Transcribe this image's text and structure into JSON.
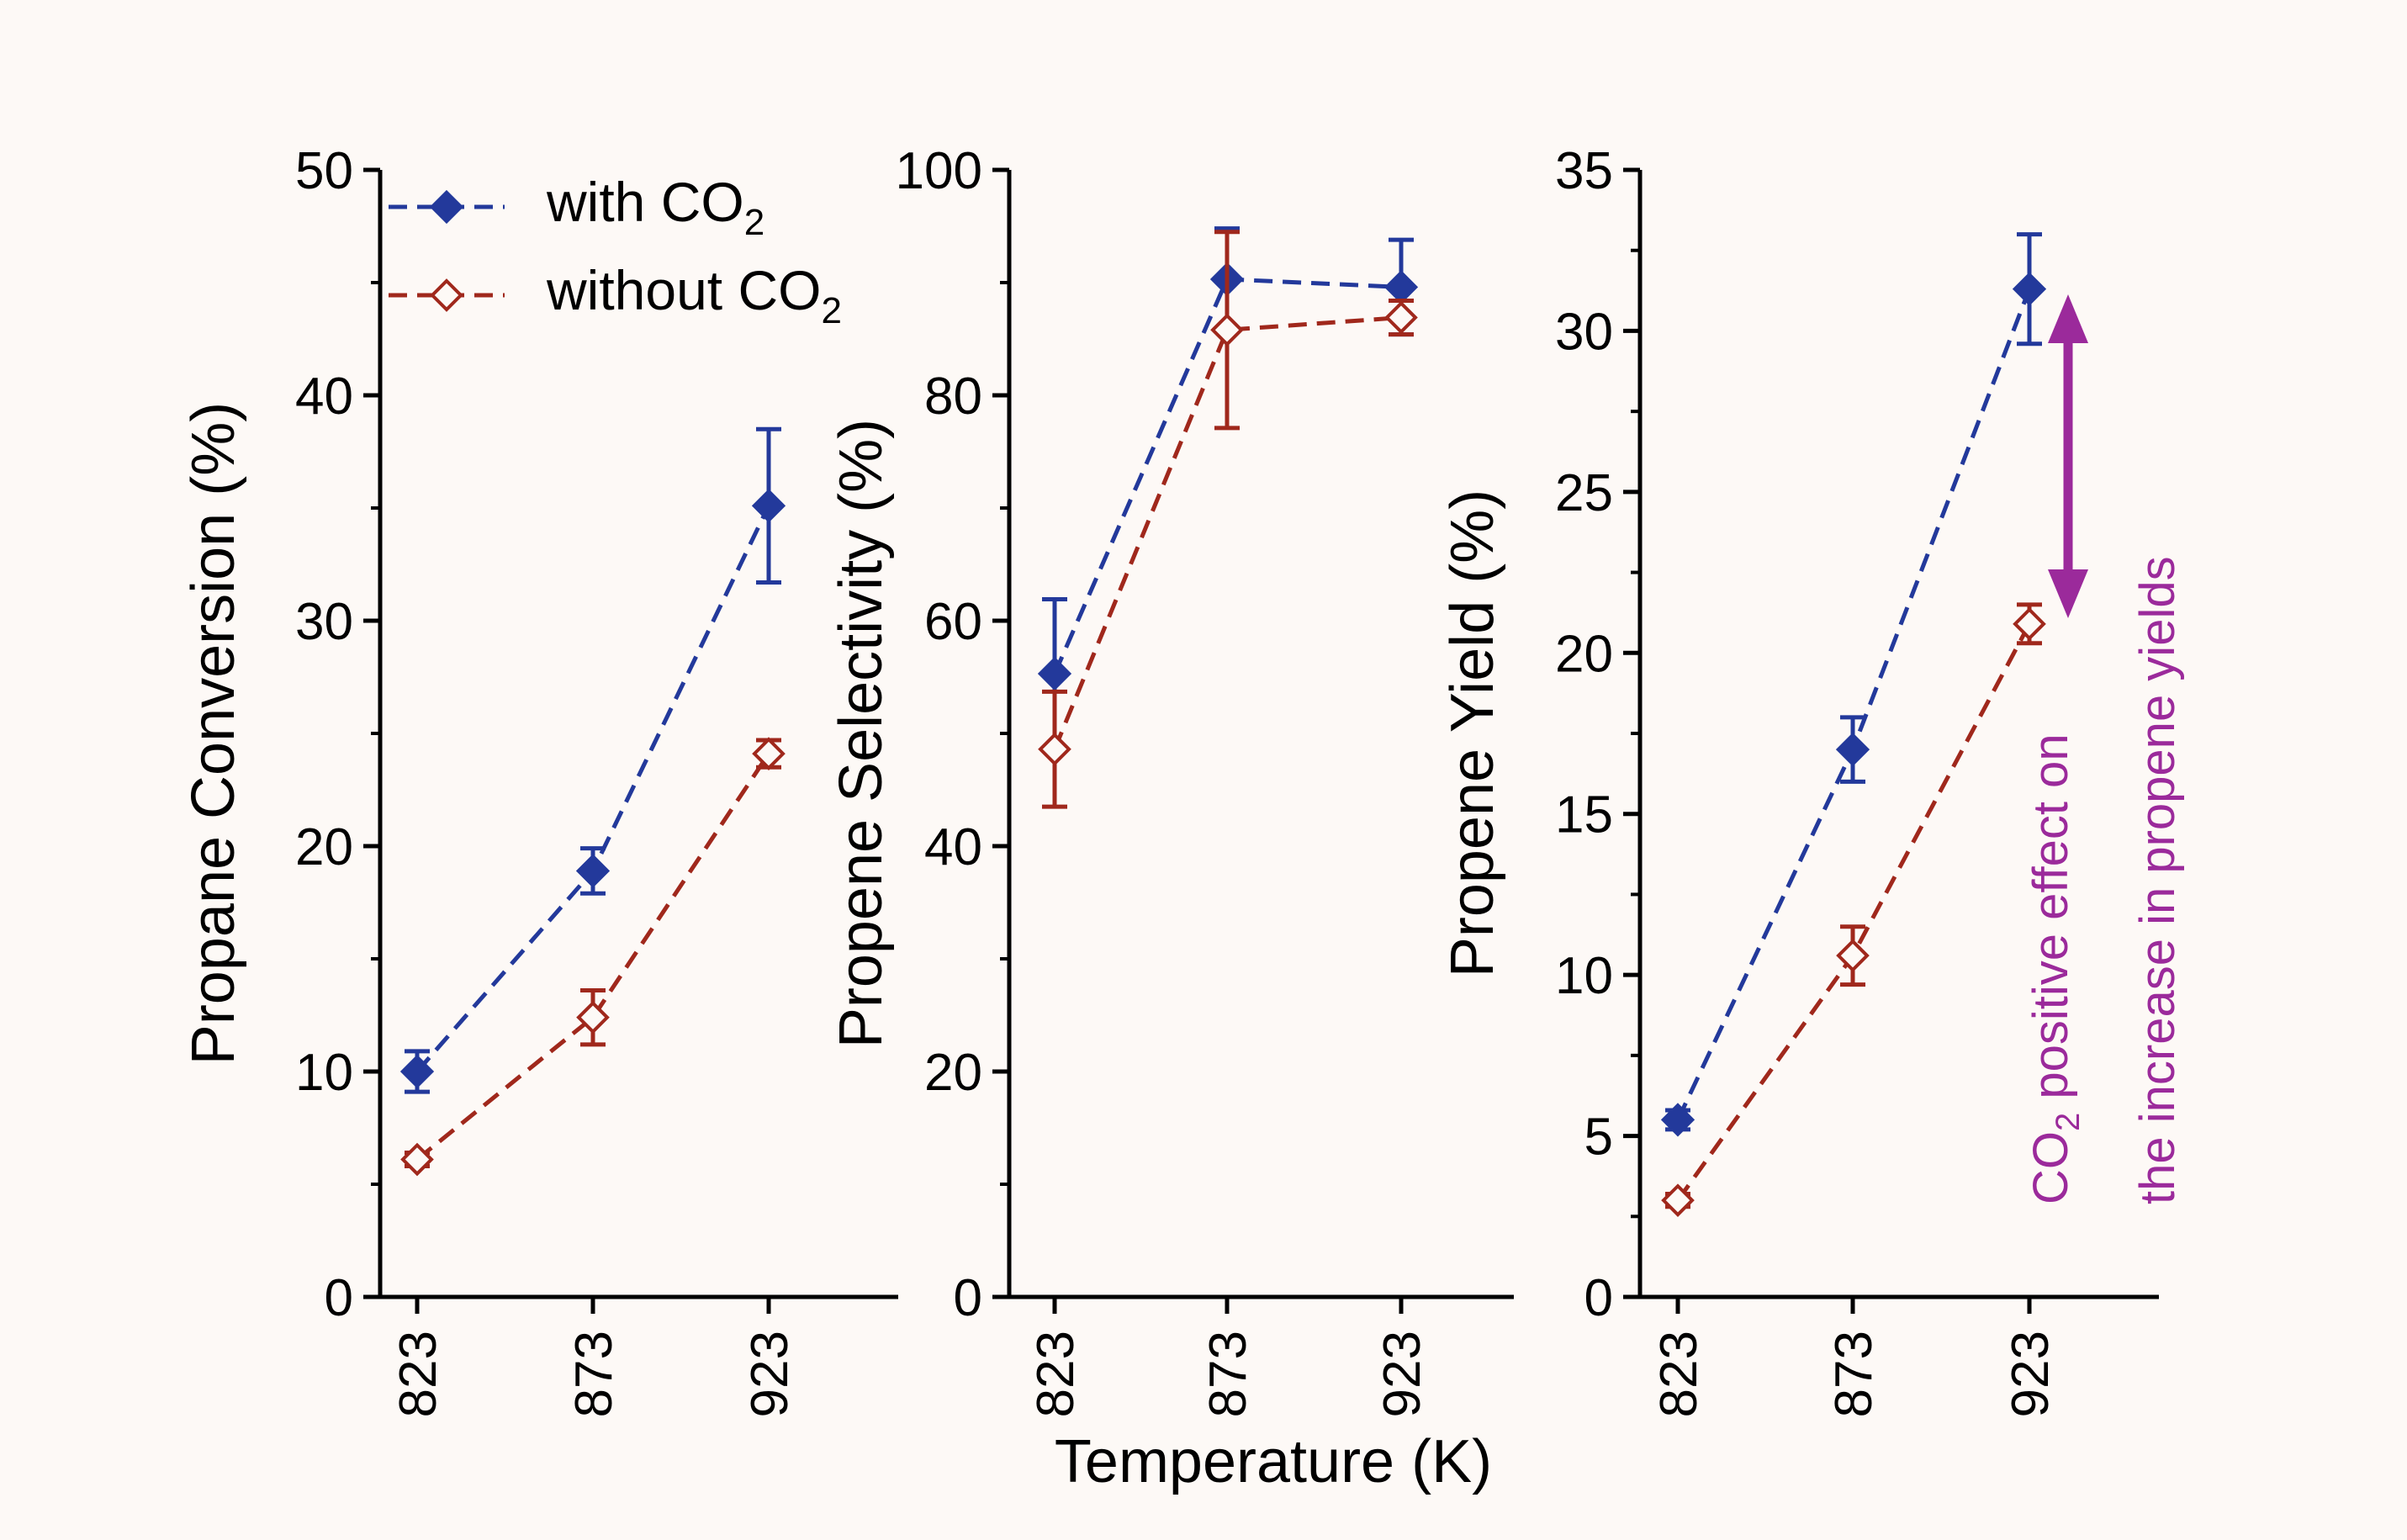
{
  "figure": {
    "shared_xlabel": "Temperature (K)",
    "legend": [
      {
        "label": "with CO",
        "sub": "2",
        "series": "with"
      },
      {
        "label": "without CO",
        "sub": "2",
        "series": "without"
      }
    ],
    "annotation": {
      "line1_prefix": "CO",
      "line1_sub": "2",
      "line1_rest": " positive effect on",
      "line2": "the increase in propene yields",
      "color": "#9b2a9b"
    },
    "colors": {
      "with": "#23399b",
      "without": "#a0281c",
      "background": "#fdf9f6"
    }
  },
  "chart_data": [
    {
      "type": "line",
      "ylabel": "Propane Conversion (%)",
      "ylim": [
        0,
        50
      ],
      "yticks": [
        0,
        10,
        20,
        30,
        40,
        50
      ],
      "categories": [
        "823",
        "873",
        "923"
      ],
      "series": [
        {
          "name": "with CO2",
          "key": "with",
          "marker": "filled-diamond",
          "values": [
            10.0,
            18.9,
            35.1
          ],
          "err": [
            0.9,
            1.0,
            3.4
          ]
        },
        {
          "name": "without CO2",
          "key": "without",
          "marker": "open-diamond",
          "values": [
            6.1,
            12.4,
            24.1
          ],
          "err": [
            0.3,
            1.2,
            0.6
          ]
        }
      ]
    },
    {
      "type": "line",
      "ylabel": "Propene Selectivity (%)",
      "ylim": [
        0,
        100
      ],
      "yticks": [
        0,
        20,
        40,
        60,
        80,
        100
      ],
      "categories": [
        "823",
        "873",
        "923"
      ],
      "series": [
        {
          "name": "with CO2",
          "key": "with",
          "marker": "filled-diamond",
          "values": [
            55.3,
            90.3,
            89.6
          ],
          "err": [
            6.6,
            4.5,
            4.2
          ]
        },
        {
          "name": "without CO2",
          "key": "without",
          "marker": "open-diamond",
          "values": [
            48.6,
            85.8,
            86.9
          ],
          "err": [
            5.1,
            8.7,
            1.5
          ]
        }
      ]
    },
    {
      "type": "line",
      "ylabel": "Propene Yield (%)",
      "ylim": [
        0,
        35
      ],
      "yticks": [
        0,
        5,
        10,
        15,
        20,
        25,
        30,
        35
      ],
      "categories": [
        "823",
        "873",
        "923"
      ],
      "series": [
        {
          "name": "with CO2",
          "key": "with",
          "marker": "filled-diamond",
          "values": [
            5.5,
            17.0,
            31.3
          ],
          "err": [
            0.3,
            1.0,
            1.7
          ]
        },
        {
          "name": "without CO2",
          "key": "without",
          "marker": "open-diamond",
          "values": [
            3.0,
            10.6,
            20.9
          ],
          "err": [
            0.2,
            0.9,
            0.6
          ]
        }
      ]
    }
  ]
}
